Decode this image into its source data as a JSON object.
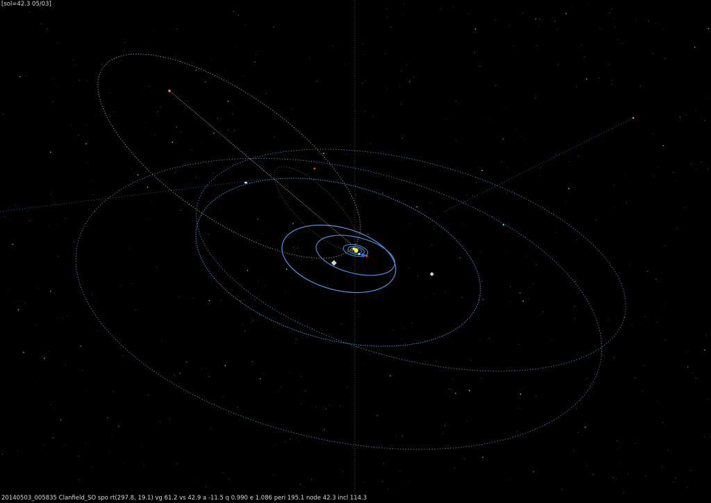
{
  "viewer": {
    "top_label": "[sol=42.3 05/03]",
    "orbit_info": "20140503_005835 Clanfield_SO spo rt(297.8, 19.1) vg 61.2 vs 42.9 a -11.5 q 0.990 e 1.086 peri 195.1 node 42.3 incl 114.3"
  },
  "colors": {
    "background": "#000000",
    "planet_orbit": "#3f7fc0",
    "outer_orbit": "#5a9fd6",
    "meteoroid_orbit": "#c8b070",
    "meteoroid_track": "#e6d6b4",
    "axis_line": "#505050",
    "sun": "#ffff30",
    "earth": "#2f6fff",
    "mars": "#ff4040",
    "jupiter": "#d8d8d8",
    "saturn": "#d8d8d8",
    "meteoroid_marker": "#ff8a50"
  }
}
